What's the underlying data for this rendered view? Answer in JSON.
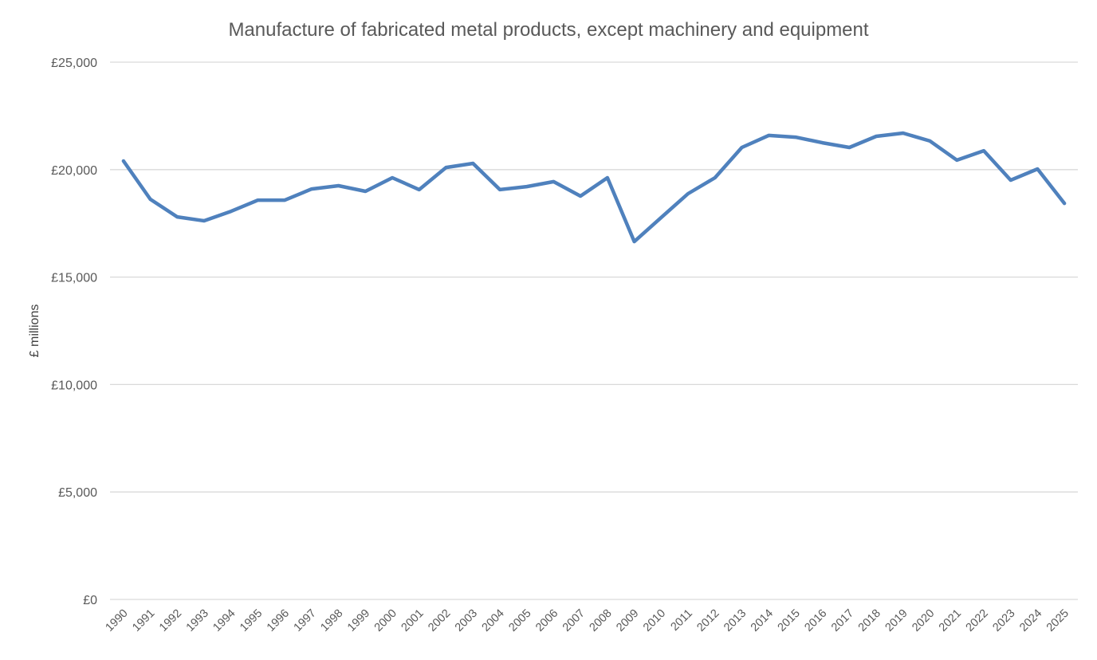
{
  "chart_data": {
    "type": "line",
    "title": "Manufacture of fabricated metal products, except machinery and equipment",
    "xlabel": "",
    "ylabel": "£ millions",
    "ylim": [
      0,
      25000
    ],
    "yticks": [
      0,
      5000,
      10000,
      15000,
      20000,
      25000
    ],
    "ytick_labels": [
      "£0",
      "£5,000",
      "£10,000",
      "£15,000",
      "£20,000",
      "£25,000"
    ],
    "grid": true,
    "legend": "none",
    "color": "#4F81BD",
    "categories": [
      "1990",
      "1991",
      "1992",
      "1993",
      "1994",
      "1995",
      "1996",
      "1997",
      "1998",
      "1999",
      "2000",
      "2001",
      "2002",
      "2003",
      "2004",
      "2005",
      "2006",
      "2007",
      "2008",
      "2009",
      "2010",
      "2011",
      "2012",
      "2013",
      "2014",
      "2015",
      "2016",
      "2017",
      "2018",
      "2019",
      "2020",
      "2021",
      "2022",
      "2023",
      "2024",
      "2025"
    ],
    "values": [
      20400,
      18620,
      17800,
      17620,
      18060,
      18580,
      18580,
      19100,
      19250,
      18990,
      19620,
      19070,
      20100,
      20290,
      19070,
      19210,
      19440,
      18770,
      19620,
      16650,
      17770,
      18880,
      19620,
      21030,
      21590,
      21510,
      21250,
      21030,
      21550,
      21700,
      21330,
      20440,
      20880,
      19510,
      20030,
      18430
    ]
  }
}
